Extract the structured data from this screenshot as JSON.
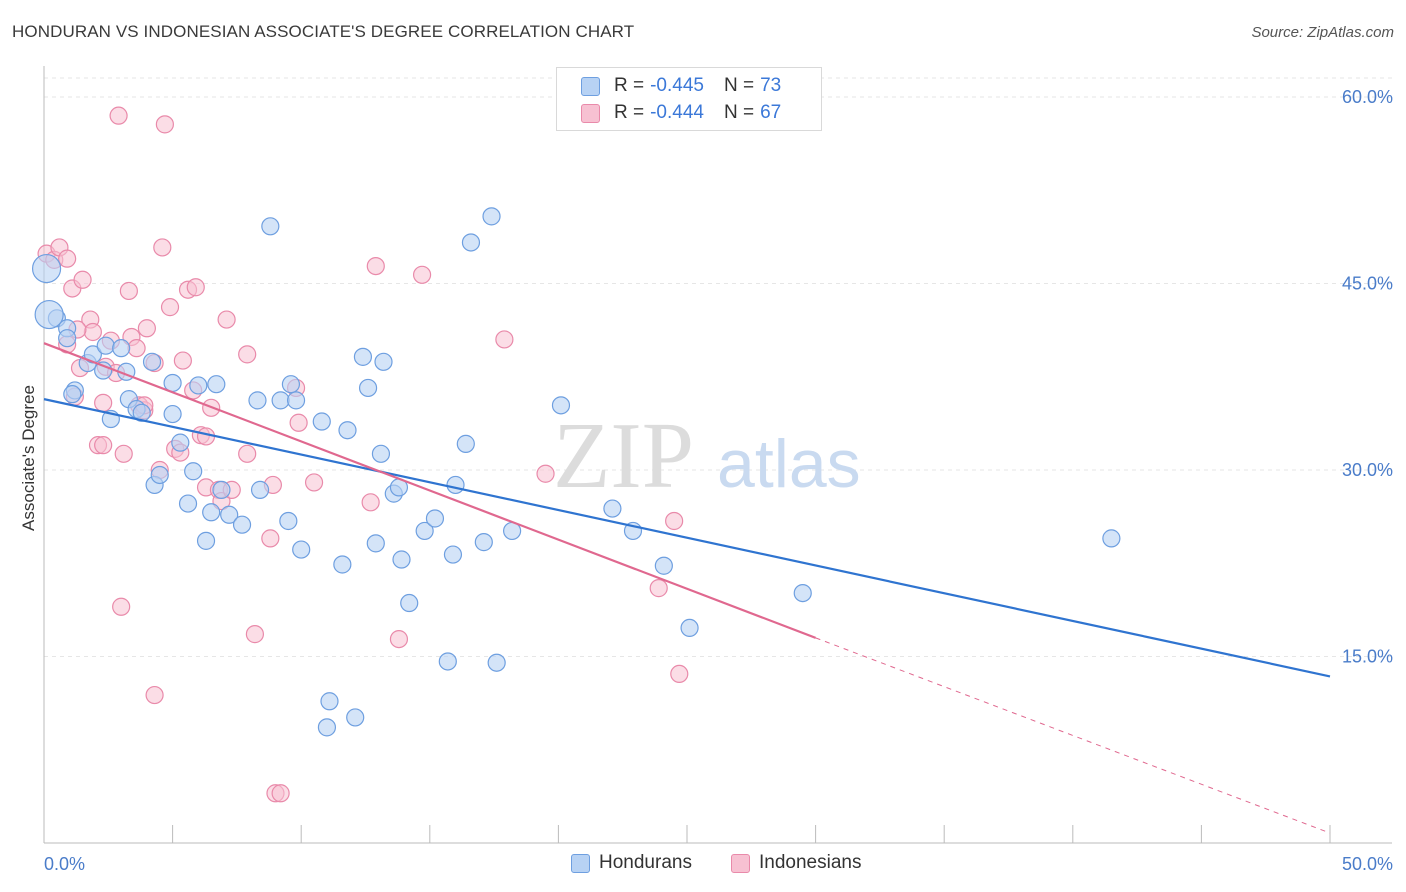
{
  "title": "HONDURAN VS INDONESIAN ASSOCIATE'S DEGREE CORRELATION CHART",
  "source": "Source: ZipAtlas.com",
  "watermark": {
    "zip": "ZIP",
    "atlas": "atlas"
  },
  "legend_top": [
    {
      "r_label": "R =",
      "r_value": "-0.445",
      "n_label": "N =",
      "n_value": "73"
    },
    {
      "r_label": "R =",
      "r_value": "-0.444",
      "n_label": "N =",
      "n_value": "67"
    }
  ],
  "legend_bottom": [
    "Hondurans",
    "Indonesians"
  ],
  "colors": {
    "hondurans_fill": "#b7d2f4",
    "hondurans_stroke": "#6e9fe0",
    "hondurans_line": "#2f74d0",
    "indonesians_fill": "#f7c1d2",
    "indonesians_stroke": "#e98aaa",
    "indonesians_line": "#e0688f",
    "tick_text": "#4a7cc9",
    "grid": "#e6e6e6"
  },
  "chart_data": {
    "type": "scatter",
    "ylabel": "Associate's Degree",
    "xlabel": "",
    "xlim": [
      0,
      50
    ],
    "ylim": [
      0,
      61.5
    ],
    "x_tick_labels": [
      "0.0%",
      "50.0%"
    ],
    "y_ticks": [
      15,
      30,
      45,
      60
    ],
    "y_tick_labels": [
      "15.0%",
      "30.0%",
      "45.0%",
      "60.0%"
    ],
    "grid": "horizontal dashed",
    "series": [
      {
        "name": "Hondurans",
        "r": -0.445,
        "n": 73,
        "trend": {
          "x0": 0,
          "y0": 35.7,
          "x1": 50,
          "y1": 13.4
        },
        "points": [
          [
            0.1,
            46.2
          ],
          [
            0.5,
            42.2
          ],
          [
            0.9,
            41.4
          ],
          [
            0.9,
            40.6
          ],
          [
            1.2,
            36.4
          ],
          [
            1.1,
            36.1
          ],
          [
            1.7,
            38.6
          ],
          [
            1.9,
            39.3
          ],
          [
            2.3,
            38.0
          ],
          [
            2.6,
            34.1
          ],
          [
            2.4,
            40.0
          ],
          [
            3.0,
            39.8
          ],
          [
            3.2,
            37.9
          ],
          [
            3.3,
            35.7
          ],
          [
            3.6,
            34.9
          ],
          [
            3.8,
            34.6
          ],
          [
            4.2,
            38.7
          ],
          [
            4.3,
            28.8
          ],
          [
            4.5,
            29.6
          ],
          [
            5.0,
            37.0
          ],
          [
            5.0,
            34.5
          ],
          [
            5.3,
            32.2
          ],
          [
            5.6,
            27.3
          ],
          [
            5.8,
            29.9
          ],
          [
            6.3,
            24.3
          ],
          [
            6.0,
            36.8
          ],
          [
            6.5,
            26.6
          ],
          [
            6.7,
            36.9
          ],
          [
            6.9,
            28.4
          ],
          [
            7.2,
            26.4
          ],
          [
            7.7,
            25.6
          ],
          [
            8.3,
            35.6
          ],
          [
            8.4,
            28.4
          ],
          [
            8.8,
            49.6
          ],
          [
            9.2,
            35.6
          ],
          [
            9.5,
            25.9
          ],
          [
            9.6,
            36.9
          ],
          [
            9.8,
            35.6
          ],
          [
            10.0,
            23.6
          ],
          [
            10.8,
            33.9
          ],
          [
            11.0,
            9.3
          ],
          [
            11.1,
            11.4
          ],
          [
            11.6,
            22.4
          ],
          [
            11.8,
            33.2
          ],
          [
            12.1,
            10.1
          ],
          [
            12.4,
            39.1
          ],
          [
            12.6,
            36.6
          ],
          [
            12.9,
            24.1
          ],
          [
            13.1,
            31.3
          ],
          [
            13.2,
            38.7
          ],
          [
            13.6,
            28.1
          ],
          [
            13.8,
            28.6
          ],
          [
            13.9,
            22.8
          ],
          [
            14.2,
            19.3
          ],
          [
            14.8,
            25.1
          ],
          [
            15.2,
            26.1
          ],
          [
            15.7,
            14.6
          ],
          [
            15.9,
            23.2
          ],
          [
            16.0,
            28.8
          ],
          [
            16.4,
            32.1
          ],
          [
            16.6,
            48.3
          ],
          [
            17.1,
            24.2
          ],
          [
            17.4,
            50.4
          ],
          [
            17.6,
            14.5
          ],
          [
            18.2,
            25.1
          ],
          [
            20.1,
            35.2
          ],
          [
            22.1,
            26.9
          ],
          [
            22.9,
            25.1
          ],
          [
            24.1,
            22.3
          ],
          [
            25.1,
            17.3
          ],
          [
            29.5,
            20.1
          ],
          [
            41.5,
            24.5
          ],
          [
            0.2,
            42.5
          ]
        ]
      },
      {
        "name": "Indonesians",
        "r": -0.444,
        "n": 67,
        "trend": {
          "x0": 0,
          "y0": 40.2,
          "x1": 30.0,
          "y1": 16.5
        },
        "trend_dashed": {
          "x0": 30.0,
          "y0": 16.5,
          "x1": 50,
          "y1": 0.8
        },
        "points": [
          [
            0.1,
            47.4
          ],
          [
            0.4,
            46.9
          ],
          [
            0.6,
            47.9
          ],
          [
            0.9,
            40.1
          ],
          [
            1.1,
            44.6
          ],
          [
            1.2,
            35.9
          ],
          [
            1.4,
            38.2
          ],
          [
            1.5,
            45.3
          ],
          [
            1.8,
            42.1
          ],
          [
            1.9,
            41.1
          ],
          [
            2.1,
            32.0
          ],
          [
            2.3,
            35.4
          ],
          [
            2.3,
            32.0
          ],
          [
            2.4,
            38.3
          ],
          [
            2.6,
            40.4
          ],
          [
            2.8,
            37.8
          ],
          [
            3.0,
            19.0
          ],
          [
            3.1,
            31.3
          ],
          [
            3.3,
            44.4
          ],
          [
            3.4,
            40.7
          ],
          [
            3.6,
            39.8
          ],
          [
            3.7,
            35.2
          ],
          [
            3.9,
            34.8
          ],
          [
            3.9,
            35.2
          ],
          [
            4.0,
            41.4
          ],
          [
            4.3,
            38.6
          ],
          [
            4.3,
            11.9
          ],
          [
            4.5,
            30.0
          ],
          [
            4.6,
            47.9
          ],
          [
            4.7,
            57.8
          ],
          [
            4.9,
            43.1
          ],
          [
            5.1,
            31.7
          ],
          [
            5.3,
            31.4
          ],
          [
            5.4,
            38.8
          ],
          [
            5.6,
            44.5
          ],
          [
            5.8,
            36.4
          ],
          [
            5.9,
            44.7
          ],
          [
            6.1,
            32.8
          ],
          [
            6.3,
            28.6
          ],
          [
            6.3,
            32.7
          ],
          [
            6.5,
            35.0
          ],
          [
            6.8,
            28.4
          ],
          [
            6.9,
            27.5
          ],
          [
            7.1,
            42.1
          ],
          [
            7.3,
            28.4
          ],
          [
            7.9,
            39.3
          ],
          [
            7.9,
            31.3
          ],
          [
            8.2,
            16.8
          ],
          [
            8.8,
            24.5
          ],
          [
            8.9,
            28.8
          ],
          [
            9.0,
            4.0
          ],
          [
            9.2,
            4.0
          ],
          [
            9.8,
            36.6
          ],
          [
            9.9,
            33.8
          ],
          [
            10.5,
            29.0
          ],
          [
            12.7,
            27.4
          ],
          [
            12.9,
            46.4
          ],
          [
            13.8,
            16.4
          ],
          [
            14.7,
            45.7
          ],
          [
            17.9,
            40.5
          ],
          [
            19.5,
            29.7
          ],
          [
            23.9,
            20.5
          ],
          [
            24.5,
            25.9
          ],
          [
            24.7,
            13.6
          ],
          [
            0.9,
            47.0
          ],
          [
            2.9,
            58.5
          ],
          [
            1.3,
            41.3
          ]
        ]
      }
    ]
  }
}
